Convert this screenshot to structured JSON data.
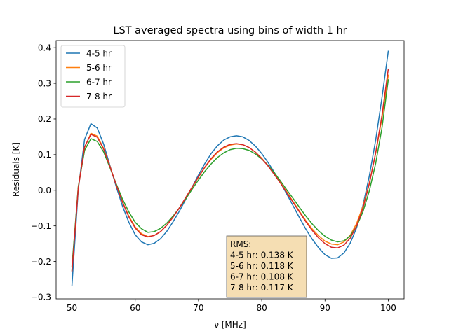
{
  "chart_data": {
    "type": "line",
    "title": "LST averaged spectra using bins of width 1 hr",
    "xlabel": "ν [MHz]",
    "ylabel": "Residuals [K]",
    "xlim": [
      47.5,
      102.5
    ],
    "ylim": [
      -0.305,
      0.42
    ],
    "xticks": [
      50,
      60,
      70,
      80,
      90,
      100
    ],
    "yticks": [
      -0.3,
      -0.2,
      -0.1,
      0.0,
      0.1,
      0.2,
      0.3,
      0.4
    ],
    "xtick_labels": [
      "50",
      "60",
      "70",
      "80",
      "90",
      "100"
    ],
    "ytick_labels": [
      "−0.3",
      "−0.2",
      "−0.1",
      "0.0",
      "0.1",
      "0.2",
      "0.3",
      "0.4"
    ],
    "grid": false,
    "legend_position": "top-left",
    "x": [
      50,
      51,
      52,
      53,
      54,
      55,
      56,
      57,
      58,
      59,
      60,
      61,
      62,
      63,
      64,
      65,
      66,
      67,
      68,
      69,
      70,
      71,
      72,
      73,
      74,
      75,
      76,
      77,
      78,
      79,
      80,
      81,
      82,
      83,
      84,
      85,
      86,
      87,
      88,
      89,
      90,
      91,
      92,
      93,
      94,
      95,
      96,
      97,
      98,
      99,
      100
    ],
    "series": [
      {
        "name": "4-5 hr",
        "color": "#1f77b4",
        "values": [
          -0.268,
          0.002,
          0.143,
          0.187,
          0.175,
          0.13,
          0.07,
          0.01,
          -0.045,
          -0.09,
          -0.125,
          -0.145,
          -0.153,
          -0.149,
          -0.136,
          -0.115,
          -0.088,
          -0.058,
          -0.025,
          0.009,
          0.043,
          0.075,
          0.103,
          0.125,
          0.141,
          0.15,
          0.153,
          0.15,
          0.14,
          0.124,
          0.103,
          0.078,
          0.05,
          0.02,
          -0.012,
          -0.045,
          -0.078,
          -0.11,
          -0.138,
          -0.162,
          -0.181,
          -0.191,
          -0.19,
          -0.176,
          -0.148,
          -0.105,
          -0.042,
          0.04,
          0.14,
          0.26,
          0.39
        ]
      },
      {
        "name": "5-6 hr",
        "color": "#ff7f0e",
        "values": [
          -0.225,
          0.008,
          0.12,
          0.16,
          0.152,
          0.118,
          0.068,
          0.015,
          -0.033,
          -0.073,
          -0.103,
          -0.122,
          -0.13,
          -0.127,
          -0.116,
          -0.098,
          -0.075,
          -0.049,
          -0.021,
          0.008,
          0.037,
          0.064,
          0.087,
          0.106,
          0.119,
          0.127,
          0.13,
          0.128,
          0.12,
          0.107,
          0.09,
          0.069,
          0.046,
          0.02,
          -0.006,
          -0.033,
          -0.06,
          -0.086,
          -0.109,
          -0.128,
          -0.143,
          -0.151,
          -0.153,
          -0.145,
          -0.126,
          -0.093,
          -0.045,
          0.02,
          0.103,
          0.203,
          0.323
        ]
      },
      {
        "name": "6-7 hr",
        "color": "#2ca02c",
        "values": [
          -0.215,
          0.01,
          0.112,
          0.145,
          0.137,
          0.108,
          0.064,
          0.018,
          -0.025,
          -0.061,
          -0.09,
          -0.108,
          -0.118,
          -0.116,
          -0.107,
          -0.092,
          -0.072,
          -0.049,
          -0.024,
          0.003,
          0.029,
          0.053,
          0.074,
          0.092,
          0.105,
          0.114,
          0.118,
          0.117,
          0.112,
          0.102,
          0.088,
          0.07,
          0.049,
          0.025,
          0.0,
          -0.024,
          -0.049,
          -0.073,
          -0.095,
          -0.114,
          -0.129,
          -0.14,
          -0.145,
          -0.142,
          -0.128,
          -0.101,
          -0.06,
          -0.002,
          0.075,
          0.175,
          0.31
        ]
      },
      {
        "name": "7-8 hr",
        "color": "#d62728",
        "values": [
          -0.228,
          0.006,
          0.122,
          0.157,
          0.149,
          0.116,
          0.067,
          0.015,
          -0.034,
          -0.075,
          -0.106,
          -0.125,
          -0.131,
          -0.127,
          -0.116,
          -0.098,
          -0.075,
          -0.049,
          -0.02,
          0.009,
          0.038,
          0.065,
          0.089,
          0.108,
          0.121,
          0.129,
          0.131,
          0.128,
          0.12,
          0.107,
          0.089,
          0.068,
          0.044,
          0.019,
          -0.008,
          -0.035,
          -0.062,
          -0.089,
          -0.113,
          -0.134,
          -0.15,
          -0.16,
          -0.162,
          -0.154,
          -0.134,
          -0.1,
          -0.05,
          0.018,
          0.105,
          0.21,
          0.34
        ]
      }
    ],
    "annotation": {
      "lines": [
        "RMS:",
        "4-5 hr: 0.138 K",
        "5-6 hr: 0.118 K",
        "6-7 hr: 0.108 K",
        "7-8 hr: 0.117 K"
      ],
      "facecolor": "#f5deb3"
    }
  }
}
